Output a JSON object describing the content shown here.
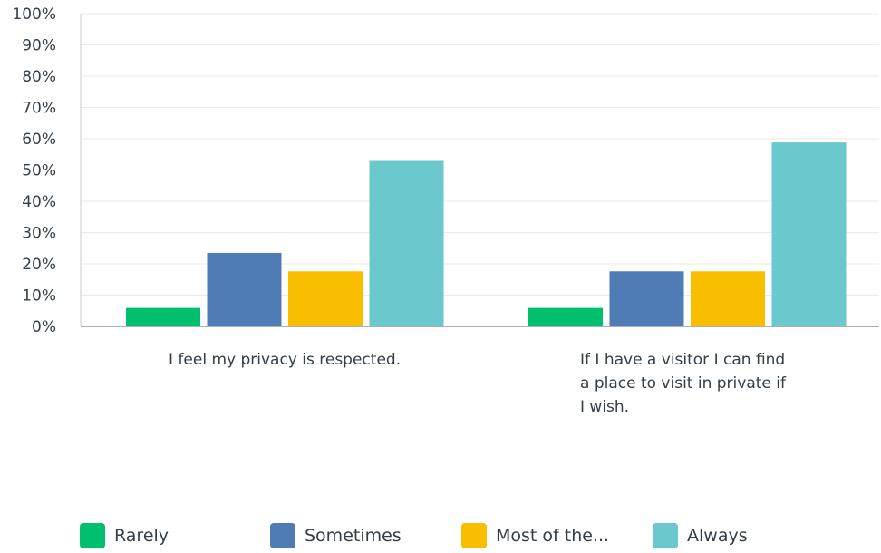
{
  "chart_data": {
    "type": "bar",
    "categories": [
      "I feel my privacy is respected.",
      "If I have a visitor I can find a place to visit in private if I wish."
    ],
    "category_lines": [
      [
        "I feel my privacy is respected."
      ],
      [
        "If I have a visitor I can find",
        "a place to visit in private if",
        "I wish."
      ]
    ],
    "series": [
      {
        "name": "Rarely",
        "values": [
          5.9,
          5.9
        ],
        "color": "#00bf6f"
      },
      {
        "name": "Sometimes",
        "values": [
          23.5,
          17.6
        ],
        "color": "#507cb6"
      },
      {
        "name": "Most of the...",
        "values": [
          17.6,
          17.6
        ],
        "color": "#f9be00"
      },
      {
        "name": "Always",
        "values": [
          52.9,
          58.8
        ],
        "color": "#6bc8cd"
      }
    ],
    "ylim": [
      0,
      100
    ],
    "yticks": [
      "0%",
      "10%",
      "20%",
      "30%",
      "40%",
      "50%",
      "60%",
      "70%",
      "80%",
      "90%",
      "100%"
    ],
    "grid": true,
    "legend_position": "bottom",
    "title": "",
    "xlabel": "",
    "ylabel": ""
  }
}
